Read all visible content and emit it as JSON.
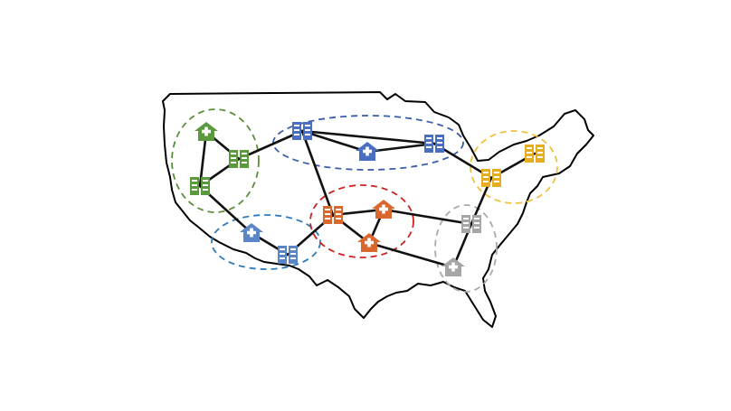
{
  "map": {
    "regions": [
      {
        "id": "northwest",
        "color": "#5b8f3a"
      },
      {
        "id": "north",
        "color": "#3b5ea8"
      },
      {
        "id": "northeast",
        "color": "#f0c040"
      },
      {
        "id": "southwest",
        "color": "#2f7ab8"
      },
      {
        "id": "central",
        "color": "#cc2222"
      },
      {
        "id": "southeast",
        "color": "#aaaaaa"
      }
    ],
    "nodes": [
      {
        "id": "nw-hospital",
        "type": "hospital",
        "region": "northwest",
        "color": "#5b9a3c",
        "icon": "hospital-icon"
      },
      {
        "id": "nw-facility-1",
        "type": "facility",
        "region": "northwest",
        "color": "#5b9a3c",
        "icon": "facility-icon"
      },
      {
        "id": "nw-facility-2",
        "type": "facility",
        "region": "northwest",
        "color": "#5b9a3c",
        "icon": "facility-icon"
      },
      {
        "id": "n-facility-1",
        "type": "facility",
        "region": "north",
        "color": "#4a6fc0",
        "icon": "facility-icon"
      },
      {
        "id": "n-hospital",
        "type": "hospital",
        "region": "north",
        "color": "#4a6fc0",
        "icon": "hospital-icon"
      },
      {
        "id": "n-facility-2",
        "type": "facility",
        "region": "north",
        "color": "#4a6fc0",
        "icon": "facility-icon"
      },
      {
        "id": "ne-facility-1",
        "type": "facility",
        "region": "northeast",
        "color": "#e6ad1e",
        "icon": "facility-icon"
      },
      {
        "id": "ne-facility-2",
        "type": "facility",
        "region": "northeast",
        "color": "#e6ad1e",
        "icon": "facility-icon"
      },
      {
        "id": "sw-hospital",
        "type": "hospital",
        "region": "southwest",
        "color": "#5a86c8",
        "icon": "hospital-icon"
      },
      {
        "id": "sw-facility",
        "type": "facility",
        "region": "southwest",
        "color": "#5a86c8",
        "icon": "facility-icon"
      },
      {
        "id": "c-facility",
        "type": "facility",
        "region": "central",
        "color": "#d9682e",
        "icon": "facility-icon"
      },
      {
        "id": "c-hospital-1",
        "type": "hospital",
        "region": "central",
        "color": "#d9682e",
        "icon": "hospital-icon"
      },
      {
        "id": "c-hospital-2",
        "type": "hospital",
        "region": "central",
        "color": "#d9682e",
        "icon": "hospital-icon"
      },
      {
        "id": "se-facility",
        "type": "facility",
        "region": "southeast",
        "color": "#a6a6a6",
        "icon": "facility-icon"
      },
      {
        "id": "se-hospital",
        "type": "hospital",
        "region": "southeast",
        "color": "#a6a6a6",
        "icon": "hospital-icon"
      }
    ],
    "edges": [
      [
        "nw-hospital",
        "nw-facility-1"
      ],
      [
        "nw-hospital",
        "nw-facility-2"
      ],
      [
        "nw-facility-1",
        "nw-facility-2"
      ],
      [
        "nw-facility-1",
        "n-facility-1"
      ],
      [
        "nw-facility-2",
        "sw-hospital"
      ],
      [
        "n-facility-1",
        "n-hospital"
      ],
      [
        "n-facility-1",
        "n-facility-2"
      ],
      [
        "n-hospital",
        "n-facility-2"
      ],
      [
        "n-facility-1",
        "c-facility"
      ],
      [
        "n-facility-2",
        "ne-facility-1"
      ],
      [
        "ne-facility-1",
        "ne-facility-2"
      ],
      [
        "ne-facility-1",
        "se-facility"
      ],
      [
        "sw-hospital",
        "sw-facility"
      ],
      [
        "sw-facility",
        "c-facility"
      ],
      [
        "c-facility",
        "c-hospital-1"
      ],
      [
        "c-facility",
        "c-hospital-2"
      ],
      [
        "c-hospital-1",
        "c-hospital-2"
      ],
      [
        "c-hospital-1",
        "se-facility"
      ],
      [
        "c-hospital-2",
        "se-hospital"
      ],
      [
        "se-facility",
        "se-hospital"
      ]
    ]
  }
}
